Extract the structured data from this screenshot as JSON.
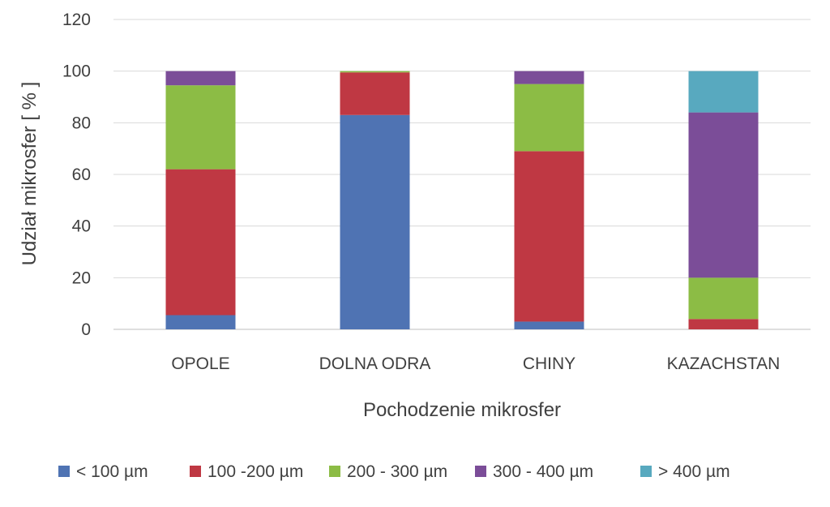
{
  "chart_data": {
    "type": "bar",
    "stacked": true,
    "xlabel": "Pochodzenie mikrosfer",
    "ylabel": "Udział  mikrosfer [ % ]",
    "ylim": [
      0,
      120
    ],
    "yticks": [
      "0",
      "20",
      "40",
      "60",
      "80",
      "100",
      "120"
    ],
    "grid": true,
    "legend_position": "bottom",
    "categories": [
      "OPOLE",
      "DOLNA ODRA",
      "CHINY",
      "KAZACHSTAN"
    ],
    "series": [
      {
        "name": "< 100  µm",
        "color": "#4f73b3",
        "values": [
          5.5,
          83,
          3,
          0
        ]
      },
      {
        "name": "100 -200  µm",
        "color": "#bf3843",
        "values": [
          56.5,
          16.5,
          66,
          4
        ]
      },
      {
        "name": "200 - 300  µm",
        "color": "#8cbc45",
        "values": [
          32.5,
          0.5,
          26,
          16
        ]
      },
      {
        "name": "300 - 400  µm",
        "color": "#7b4d98",
        "values": [
          5.5,
          0,
          5,
          64
        ]
      },
      {
        "name": "> 400 µm",
        "color": "#58a9bf",
        "values": [
          0,
          0,
          0,
          16
        ]
      }
    ]
  }
}
